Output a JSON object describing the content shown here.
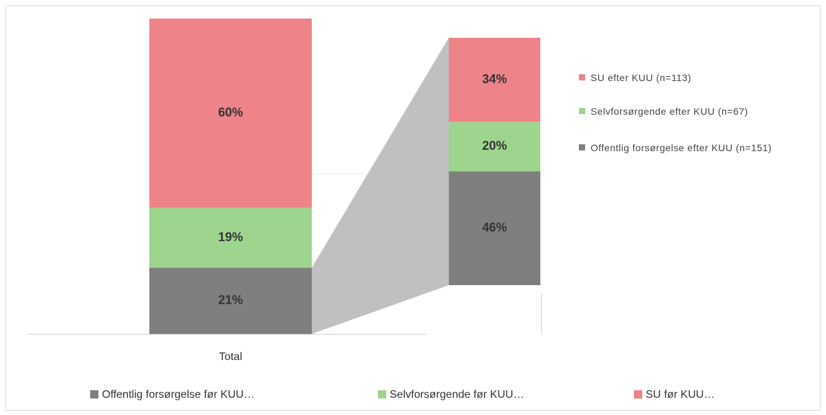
{
  "chart_data": {
    "type": "bar-of-bar",
    "categories": [
      "Total"
    ],
    "series": [
      {
        "name": "Offentlig forsørgelse før KUU…",
        "color": "#7f7f7f",
        "values": [
          21
        ],
        "value_labels": [
          "21%"
        ]
      },
      {
        "name": "Selvforsørgende før KUU…",
        "color": "#9dd58e",
        "values": [
          19
        ],
        "value_labels": [
          "19%"
        ]
      },
      {
        "name": "SU før KUU…",
        "color": "#ee838a",
        "values": [
          60
        ],
        "value_labels": [
          "60%"
        ]
      }
    ],
    "breakdown": {
      "series": [
        {
          "name": "Offentlig forsørgelse efter KUU (n=151)",
          "color": "#7f7f7f",
          "values": [
            46
          ],
          "value_labels": [
            "46%"
          ]
        },
        {
          "name": "Selvforsørgende efter KUU (n=67)",
          "color": "#9dd58e",
          "values": [
            20
          ],
          "value_labels": [
            "20%"
          ]
        },
        {
          "name": "SU efter KUU (n=113)",
          "color": "#ee838a",
          "values": [
            34
          ],
          "value_labels": [
            "34%"
          ]
        }
      ]
    }
  }
}
